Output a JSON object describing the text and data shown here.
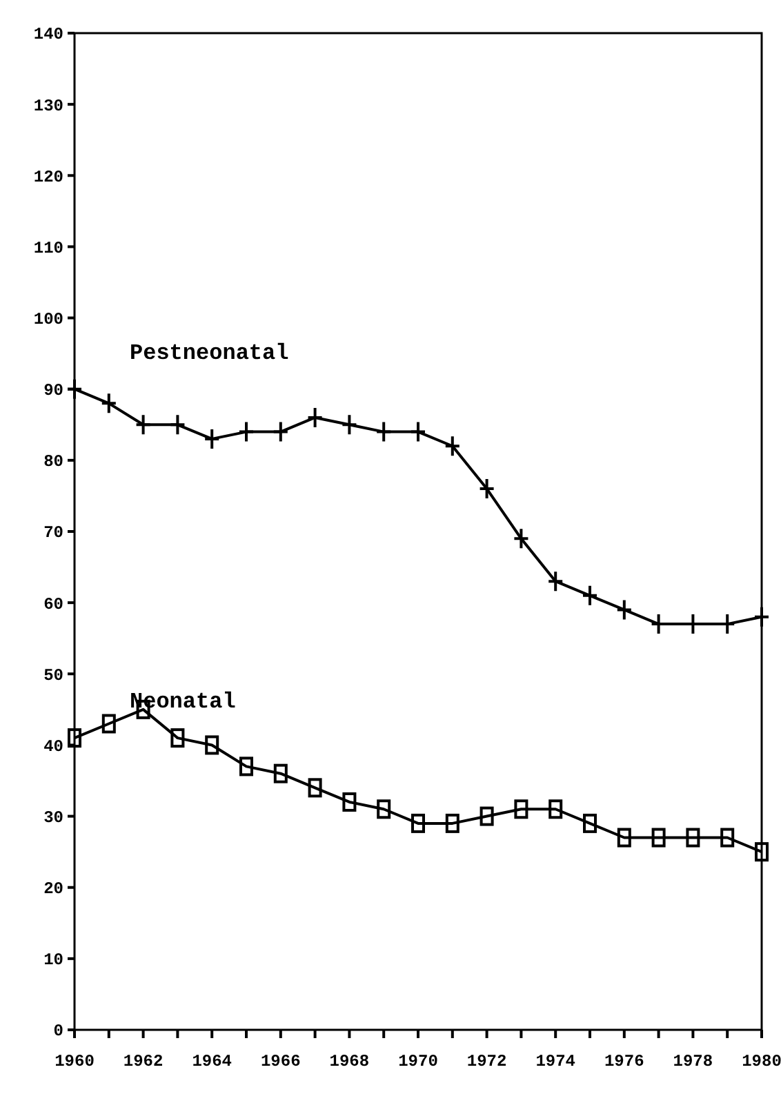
{
  "chart_data": {
    "type": "line",
    "x": [
      1960,
      1961,
      1962,
      1963,
      1964,
      1965,
      1966,
      1967,
      1968,
      1969,
      1970,
      1971,
      1972,
      1973,
      1974,
      1975,
      1976,
      1977,
      1978,
      1979,
      1980
    ],
    "xlim": [
      1960,
      1980
    ],
    "xticks": [
      1960,
      {
        "value": 1961,
        "label": null
      },
      1962,
      {
        "value": 1963,
        "label": null
      },
      1964,
      {
        "value": 1965,
        "label": null
      },
      1966,
      {
        "value": 1967,
        "label": null
      },
      1968,
      {
        "value": 1969,
        "label": null
      },
      1970,
      {
        "value": 1971,
        "label": null
      },
      1972,
      {
        "value": 1973,
        "label": null
      },
      1974,
      {
        "value": 1975,
        "label": null
      },
      1976,
      {
        "value": 1977,
        "label": null
      },
      1978,
      {
        "value": 1979,
        "label": null
      },
      1980
    ],
    "ylim": [
      0,
      140
    ],
    "yticks": [
      0,
      10,
      20,
      30,
      40,
      50,
      60,
      70,
      80,
      90,
      100,
      110,
      120,
      130,
      140
    ],
    "grid": false,
    "line_style": "solid",
    "series": [
      {
        "name": "Pestneonatal",
        "color": "#000000",
        "marker": "cross",
        "values": [
          90,
          88,
          85,
          85,
          83,
          84,
          84,
          86,
          85,
          84,
          84,
          82,
          76,
          69,
          63,
          61,
          59,
          57,
          57,
          57,
          58
        ]
      },
      {
        "name": "Neonatal",
        "color": "#000000",
        "marker": "square",
        "values": [
          41,
          43,
          45,
          41,
          40,
          37,
          36,
          34,
          32,
          31,
          29,
          29,
          30,
          31,
          31,
          29,
          27,
          27,
          27,
          27,
          25
        ]
      }
    ]
  }
}
